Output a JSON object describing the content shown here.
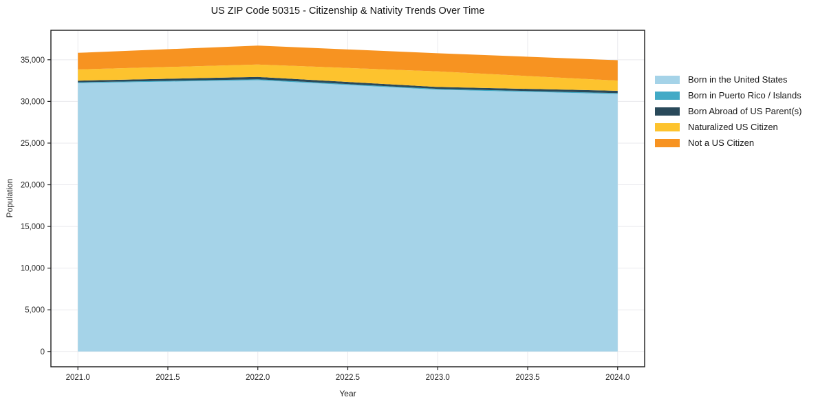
{
  "title": "US ZIP Code 50315 - Citizenship & Nativity Trends Over Time",
  "chart_data": {
    "type": "area",
    "stacked": true,
    "title": "US ZIP Code 50315 - Citizenship & Nativity Trends Over Time",
    "xlabel": "Year",
    "ylabel": "Population",
    "x": [
      2021,
      2022,
      2023,
      2024
    ],
    "series": [
      {
        "name": "Born in the United States",
        "color": "#a5d3e8",
        "values": [
          32200,
          32550,
          31400,
          30900
        ]
      },
      {
        "name": "Born in Puerto Rico / Islands",
        "color": "#42aac6",
        "values": [
          90,
          110,
          100,
          100
        ]
      },
      {
        "name": "Born Abroad of US Parent(s)",
        "color": "#29495a",
        "values": [
          200,
          280,
          230,
          280
        ]
      },
      {
        "name": "Naturalized US Citizen",
        "color": "#fdc32e",
        "values": [
          1350,
          1480,
          1870,
          1220
        ]
      },
      {
        "name": "Not a US Citizen",
        "color": "#f79321",
        "values": [
          1990,
          2280,
          2180,
          2440
        ]
      }
    ],
    "stack_totals": [
      35830,
      36700,
      35780,
      34940
    ],
    "xlim": [
      2020.85,
      2024.15
    ],
    "ylim": [
      -1835,
      38535
    ],
    "x_tick_values": [
      2021.0,
      2021.5,
      2022.0,
      2022.5,
      2023.0,
      2023.5,
      2024.0
    ],
    "x_tick_labels": [
      "2021.0",
      "2021.5",
      "2022.0",
      "2022.5",
      "2023.0",
      "2023.5",
      "2024.0"
    ],
    "y_tick_values": [
      0,
      5000,
      10000,
      15000,
      20000,
      25000,
      30000,
      35000
    ],
    "y_tick_labels": [
      "0",
      "5,000",
      "10,000",
      "15,000",
      "20,000",
      "25,000",
      "30,000",
      "35,000"
    ],
    "grid": true,
    "legend_position": "right",
    "style": {
      "background": "#ffffff",
      "grid_color": "#e9e9ed",
      "frame_color": "#1a1a1a",
      "tick_color": "#222222",
      "tick_label_color": "#262626"
    }
  }
}
